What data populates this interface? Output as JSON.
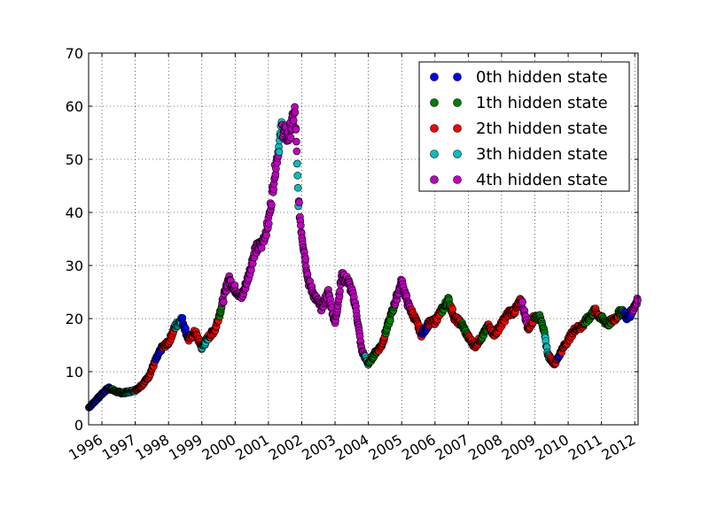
{
  "chart_data": {
    "type": "scatter",
    "title": "",
    "xlabel": "",
    "ylabel": "",
    "xlim": [
      1995.6,
      2012.1
    ],
    "ylim": [
      0,
      70
    ],
    "yticks": [
      0,
      10,
      20,
      30,
      40,
      50,
      60,
      70
    ],
    "xticks": [
      1996,
      1997,
      1998,
      1999,
      2000,
      2001,
      2002,
      2003,
      2004,
      2005,
      2006,
      2007,
      2008,
      2009,
      2010,
      2011,
      2012
    ],
    "xtick_labels": [
      "1996",
      "1997",
      "1998",
      "1999",
      "2000",
      "2001",
      "2002",
      "2003",
      "2004",
      "2005",
      "2006",
      "2007",
      "2008",
      "2009",
      "2010",
      "2011",
      "2012"
    ],
    "grid": true,
    "legend_position": "top-right",
    "price_path": [
      [
        1995.6,
        3.2
      ],
      [
        1995.8,
        4.5
      ],
      [
        1996.0,
        5.8
      ],
      [
        1996.2,
        7.0
      ],
      [
        1996.4,
        6.3
      ],
      [
        1996.6,
        6.0
      ],
      [
        1996.8,
        6.2
      ],
      [
        1997.0,
        6.5
      ],
      [
        1997.2,
        7.5
      ],
      [
        1997.4,
        9.0
      ],
      [
        1997.6,
        12.0
      ],
      [
        1997.8,
        14.5
      ],
      [
        1998.0,
        15.5
      ],
      [
        1998.2,
        18.5
      ],
      [
        1998.4,
        20.0
      ],
      [
        1998.6,
        16.0
      ],
      [
        1998.8,
        17.5
      ],
      [
        1999.0,
        14.5
      ],
      [
        1999.2,
        16.5
      ],
      [
        1999.4,
        18.0
      ],
      [
        1999.6,
        22.5
      ],
      [
        1999.8,
        27.5
      ],
      [
        2000.0,
        25.5
      ],
      [
        2000.2,
        24.0
      ],
      [
        2000.4,
        28.0
      ],
      [
        2000.6,
        33.0
      ],
      [
        2000.8,
        34.0
      ],
      [
        2001.0,
        38.0
      ],
      [
        2001.2,
        48.0
      ],
      [
        2001.4,
        56.0
      ],
      [
        2001.6,
        54.0
      ],
      [
        2001.8,
        59.0
      ],
      [
        2001.9,
        42.0
      ],
      [
        2002.0,
        36.0
      ],
      [
        2002.2,
        27.0
      ],
      [
        2002.4,
        24.0
      ],
      [
        2002.6,
        22.0
      ],
      [
        2002.8,
        25.0
      ],
      [
        2003.0,
        19.0
      ],
      [
        2003.2,
        28.0
      ],
      [
        2003.4,
        27.0
      ],
      [
        2003.6,
        23.0
      ],
      [
        2003.8,
        14.0
      ],
      [
        2004.0,
        11.5
      ],
      [
        2004.2,
        13.5
      ],
      [
        2004.4,
        15.0
      ],
      [
        2004.6,
        19.0
      ],
      [
        2004.8,
        23.0
      ],
      [
        2005.0,
        27.0
      ],
      [
        2005.2,
        22.5
      ],
      [
        2005.4,
        20.0
      ],
      [
        2005.6,
        17.0
      ],
      [
        2005.8,
        19.0
      ],
      [
        2006.0,
        19.5
      ],
      [
        2006.2,
        21.5
      ],
      [
        2006.4,
        23.5
      ],
      [
        2006.6,
        20.0
      ],
      [
        2006.8,
        19.0
      ],
      [
        2007.0,
        16.5
      ],
      [
        2007.2,
        14.8
      ],
      [
        2007.4,
        16.5
      ],
      [
        2007.6,
        18.5
      ],
      [
        2007.8,
        17.0
      ],
      [
        2008.0,
        19.0
      ],
      [
        2008.2,
        21.0
      ],
      [
        2008.4,
        21.5
      ],
      [
        2008.6,
        23.5
      ],
      [
        2008.8,
        18.0
      ],
      [
        2009.0,
        20.5
      ],
      [
        2009.2,
        20.0
      ],
      [
        2009.4,
        13.0
      ],
      [
        2009.6,
        11.5
      ],
      [
        2009.8,
        14.0
      ],
      [
        2010.0,
        16.0
      ],
      [
        2010.2,
        18.0
      ],
      [
        2010.4,
        18.5
      ],
      [
        2010.6,
        20.0
      ],
      [
        2010.8,
        21.5
      ],
      [
        2011.0,
        20.0
      ],
      [
        2011.2,
        19.0
      ],
      [
        2011.4,
        20.0
      ],
      [
        2011.6,
        21.5
      ],
      [
        2011.8,
        20.0
      ],
      [
        2012.0,
        22.5
      ],
      [
        2012.1,
        24.0
      ]
    ],
    "state_segments": [
      [
        1995.6,
        1996.3,
        0
      ],
      [
        1996.3,
        1996.8,
        1
      ],
      [
        1996.8,
        1997.0,
        3
      ],
      [
        1997.0,
        1997.6,
        2
      ],
      [
        1997.6,
        1997.8,
        0
      ],
      [
        1997.8,
        1998.2,
        2
      ],
      [
        1998.2,
        1998.4,
        3
      ],
      [
        1998.4,
        1998.6,
        0
      ],
      [
        1998.6,
        1999.0,
        2
      ],
      [
        1999.0,
        1999.2,
        3
      ],
      [
        1999.2,
        1999.5,
        2
      ],
      [
        1999.5,
        1999.6,
        1
      ],
      [
        1999.6,
        2001.3,
        4
      ],
      [
        2001.3,
        2001.4,
        3
      ],
      [
        2001.4,
        2001.85,
        4
      ],
      [
        2001.85,
        2001.9,
        3
      ],
      [
        2001.9,
        2003.9,
        4
      ],
      [
        2003.9,
        2004.0,
        3
      ],
      [
        2004.0,
        2004.3,
        1
      ],
      [
        2004.3,
        2004.5,
        2
      ],
      [
        2004.5,
        2004.8,
        1
      ],
      [
        2004.8,
        2005.3,
        4
      ],
      [
        2005.3,
        2005.6,
        2
      ],
      [
        2005.6,
        2005.8,
        0
      ],
      [
        2005.8,
        2006.2,
        2
      ],
      [
        2006.2,
        2006.5,
        1
      ],
      [
        2006.5,
        2006.8,
        2
      ],
      [
        2006.8,
        2007.0,
        1
      ],
      [
        2007.0,
        2007.4,
        2
      ],
      [
        2007.4,
        2007.6,
        1
      ],
      [
        2007.6,
        2008.0,
        2
      ],
      [
        2008.0,
        2008.6,
        2
      ],
      [
        2008.6,
        2008.8,
        4
      ],
      [
        2008.8,
        2009.0,
        2
      ],
      [
        2009.0,
        2009.3,
        1
      ],
      [
        2009.3,
        2009.45,
        3
      ],
      [
        2009.45,
        2009.7,
        2
      ],
      [
        2009.7,
        2009.8,
        0
      ],
      [
        2009.8,
        2010.5,
        2
      ],
      [
        2010.5,
        2010.8,
        1
      ],
      [
        2010.8,
        2011.0,
        2
      ],
      [
        2011.0,
        2011.3,
        1
      ],
      [
        2011.3,
        2011.5,
        2
      ],
      [
        2011.5,
        2011.7,
        1
      ],
      [
        2011.7,
        2011.9,
        0
      ],
      [
        2011.9,
        2012.1,
        4
      ]
    ],
    "series": [
      {
        "name": "0th hidden state",
        "color": "#0000ff"
      },
      {
        "name": "1th hidden state",
        "color": "#007f00"
      },
      {
        "name": "2th hidden state",
        "color": "#ff0000"
      },
      {
        "name": "3th hidden state",
        "color": "#00bfbf"
      },
      {
        "name": "4th hidden state",
        "color": "#bf00bf"
      }
    ]
  }
}
